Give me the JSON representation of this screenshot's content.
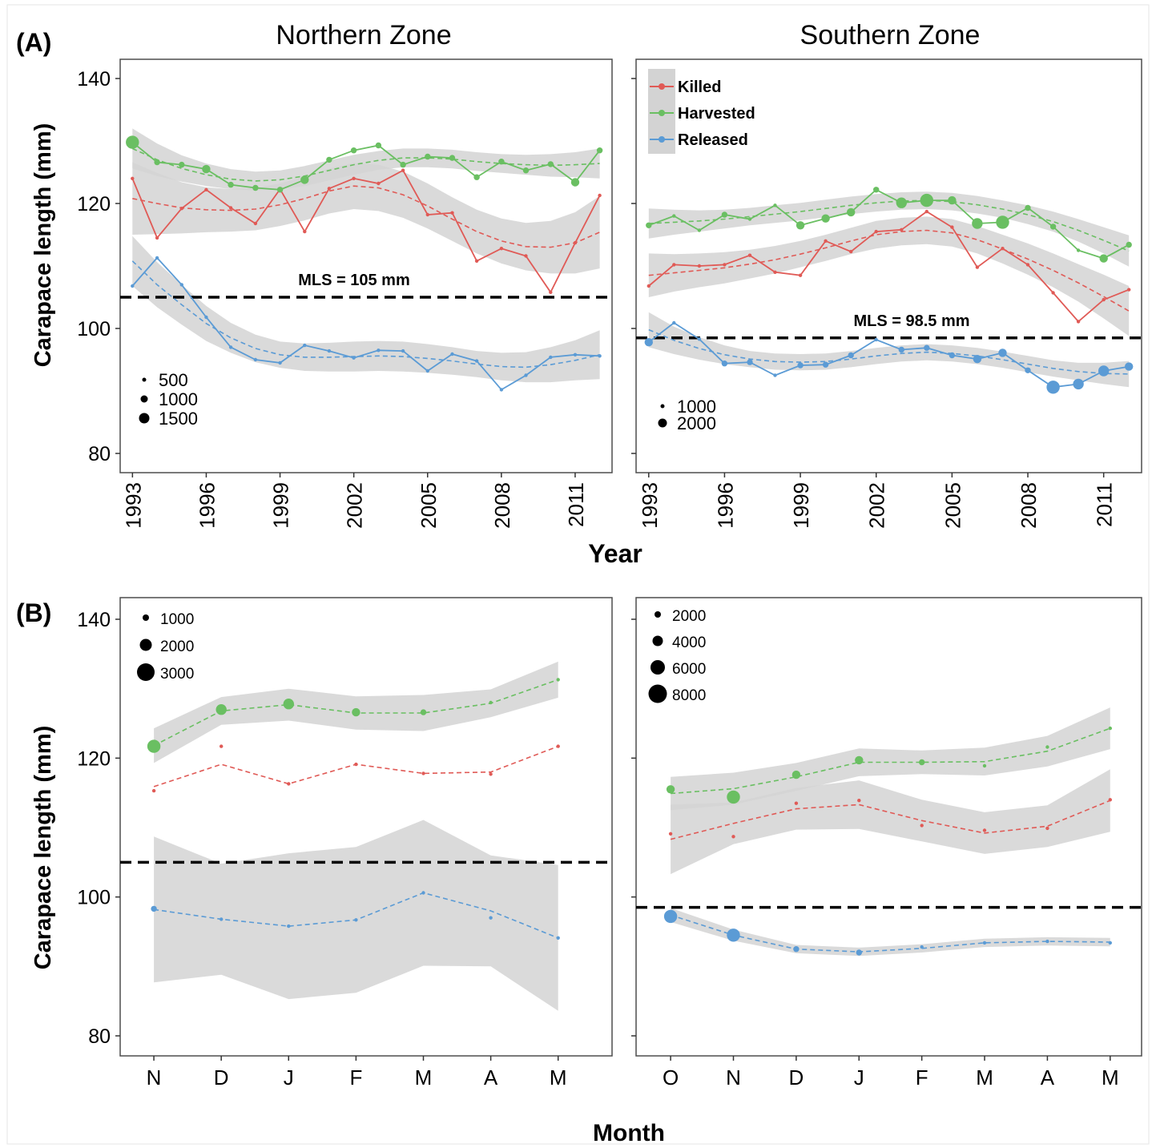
{
  "figure": {
    "panel_a_label": "(A)",
    "panel_b_label": "(B)",
    "a_xlabel": "Year",
    "b_xlabel": "Month",
    "ylabel": "Carapace length (mm)",
    "legend": {
      "killed": "Killed",
      "harvested": "Harvested",
      "released": "Released"
    },
    "colors": {
      "killed": "#e05a56",
      "harvested": "#6abf62",
      "released": "#5b9bd5",
      "band": "#d3d3d3"
    }
  },
  "chart_data": [
    {
      "id": "A-north",
      "type": "line",
      "title": "Northern Zone",
      "xlabel": "Year",
      "ylabel": "Carapace length (mm)",
      "ylim": [
        77,
        143
      ],
      "xlim": [
        1992.5,
        2012.5
      ],
      "yticks": [
        80,
        100,
        120,
        140
      ],
      "xticks": [
        "1993",
        "1996",
        "1999",
        "2002",
        "2005",
        "2008",
        "2011"
      ],
      "mls_label": "MLS = 105 mm",
      "mls_value": 105,
      "size_legend": [
        "500",
        "1000",
        "1500"
      ],
      "x": [
        1993,
        1994,
        1995,
        1996,
        1997,
        1998,
        1999,
        2000,
        2001,
        2002,
        2003,
        2004,
        2005,
        2006,
        2007,
        2008,
        2009,
        2010,
        2011,
        2012
      ],
      "series": [
        {
          "key": "killed",
          "values": [
            124,
            114.5,
            119.2,
            122.2,
            119.3,
            116.8,
            122.3,
            115.5,
            122.4,
            124,
            123.2,
            125.3,
            118.2,
            118.5,
            110.8,
            112.8,
            111.6,
            105.8,
            113.7,
            121.3
          ],
          "sizes": [
            1,
            1,
            1,
            1,
            1,
            1,
            1,
            1,
            1,
            1,
            1,
            1,
            1,
            1,
            1,
            1,
            1,
            1,
            1,
            1
          ],
          "trend": [
            120.8,
            120,
            119.3,
            119,
            118.9,
            119.1,
            119.8,
            120.8,
            122,
            122.8,
            122.5,
            121.4,
            119.6,
            117.5,
            115.5,
            114,
            113.1,
            113,
            113.7,
            115.4
          ],
          "band": [
            5.8,
            4.9,
            4.1,
            3.6,
            3.4,
            3.4,
            3.4,
            3.5,
            3.6,
            3.7,
            3.7,
            3.7,
            3.6,
            3.5,
            3.5,
            3.6,
            3.8,
            4.2,
            4.9,
            5.8
          ]
        },
        {
          "key": "harvested",
          "values": [
            129.8,
            126.6,
            126.2,
            125.5,
            123,
            122.5,
            122.2,
            123.8,
            127,
            128.5,
            129.3,
            126.2,
            127.5,
            127.3,
            124.2,
            126.7,
            125.3,
            126.3,
            123.4,
            128.5
          ],
          "sizes": [
            3,
            1.5,
            1.5,
            2,
            1.5,
            1.5,
            1.5,
            2,
            1.5,
            1.5,
            1.5,
            1.5,
            1.5,
            1.5,
            1.5,
            1.5,
            1.5,
            1.5,
            2,
            1.5
          ],
          "trend": [
            128.8,
            127,
            125.6,
            124.6,
            123.9,
            123.6,
            123.8,
            124.4,
            125.3,
            126.2,
            126.9,
            127.3,
            127.3,
            127.1,
            126.7,
            126.4,
            126.2,
            126.1,
            126.2,
            126.4
          ],
          "band": [
            3.2,
            2.6,
            2.1,
            1.8,
            1.6,
            1.5,
            1.5,
            1.6,
            1.6,
            1.6,
            1.5,
            1.5,
            1.5,
            1.5,
            1.5,
            1.5,
            1.6,
            1.8,
            2,
            2.4
          ]
        },
        {
          "key": "released",
          "values": [
            106.8,
            111.3,
            107,
            101.8,
            97,
            95,
            94.5,
            97.3,
            96.4,
            95.3,
            96.5,
            96.4,
            93.2,
            95.9,
            94.8,
            90.2,
            92.5,
            95.4,
            95.8,
            95.6
          ],
          "sizes": [
            1,
            1,
            1,
            1,
            1,
            1,
            1,
            1,
            1,
            1,
            1,
            1,
            1,
            1,
            1,
            1,
            1,
            1,
            1,
            1
          ],
          "trend": [
            110.8,
            107,
            103.8,
            100.8,
            98.5,
            96.8,
            95.8,
            95.4,
            95.4,
            95.5,
            95.6,
            95.5,
            95.2,
            94.8,
            94.3,
            93.9,
            93.8,
            94.2,
            94.9,
            95.8
          ],
          "band": [
            4,
            3.6,
            3.2,
            2.8,
            2.4,
            2.2,
            2.1,
            2.2,
            2.3,
            2.4,
            2.4,
            2.4,
            2.3,
            2.2,
            2.1,
            2.2,
            2.4,
            2.8,
            3.2,
            3.9
          ]
        }
      ]
    },
    {
      "id": "A-south",
      "type": "line",
      "title": "Southern Zone",
      "xlabel": "Year",
      "ylabel": "Carapace length (mm)",
      "ylim": [
        77,
        143
      ],
      "xlim": [
        1992.5,
        2012.5
      ],
      "yticks": [
        80,
        100,
        120,
        140
      ],
      "xticks": [
        "1993",
        "1996",
        "1999",
        "2002",
        "2005",
        "2008",
        "2011"
      ],
      "mls_label": "MLS = 98.5 mm",
      "mls_value": 98.5,
      "size_legend": [
        "1000",
        "2000"
      ],
      "x": [
        1993,
        1994,
        1995,
        1996,
        1997,
        1998,
        1999,
        2000,
        2001,
        2002,
        2003,
        2004,
        2005,
        2006,
        2007,
        2008,
        2009,
        2010,
        2011,
        2012
      ],
      "series": [
        {
          "key": "killed",
          "values": [
            106.8,
            110.2,
            110,
            110.2,
            111.7,
            109,
            108.5,
            114,
            112.3,
            115.5,
            115.8,
            118.7,
            116.2,
            109.8,
            112.8,
            110.2,
            105.7,
            101.1,
            104.6,
            106.2
          ],
          "sizes": [
            1,
            1,
            1,
            1,
            1,
            1,
            1,
            1,
            1,
            1,
            1,
            1,
            1,
            1,
            1,
            1,
            1,
            1,
            1,
            1
          ],
          "trend": [
            108.5,
            108.9,
            109.3,
            109.7,
            110.3,
            111,
            111.9,
            112.9,
            114,
            115,
            115.5,
            115.7,
            115.3,
            114.2,
            112.7,
            111.1,
            109.3,
            107.3,
            105.1,
            102.8
          ],
          "band": [
            3.5,
            3,
            2.7,
            2.5,
            2.3,
            2.2,
            2.1,
            2.1,
            2.1,
            2.2,
            2.2,
            2.2,
            2.2,
            2.2,
            2.3,
            2.5,
            2.7,
            3,
            3.5,
            4
          ]
        },
        {
          "key": "harvested",
          "values": [
            116.5,
            118,
            115.7,
            118.2,
            117.5,
            119.7,
            116.5,
            117.6,
            118.6,
            122.2,
            120.1,
            120.5,
            120.5,
            116.8,
            117,
            119.3,
            116.3,
            112.5,
            111.2,
            113.4
          ],
          "sizes": [
            1.5,
            1,
            1,
            1.5,
            1,
            1,
            2,
            2,
            2,
            1.5,
            2.5,
            3,
            2,
            2.5,
            3,
            1.5,
            1.5,
            1,
            2,
            1.5
          ],
          "trend": [
            116.8,
            117,
            117.2,
            117.5,
            117.9,
            118.3,
            118.7,
            119.2,
            119.7,
            120.1,
            120.4,
            120.5,
            120.3,
            119.8,
            119.1,
            118.2,
            117.1,
            115.7,
            114.1,
            112.4
          ],
          "band": [
            2.4,
            2,
            1.7,
            1.5,
            1.4,
            1.4,
            1.4,
            1.4,
            1.4,
            1.4,
            1.4,
            1.4,
            1.4,
            1.4,
            1.4,
            1.5,
            1.6,
            1.8,
            2.1,
            2.5
          ]
        },
        {
          "key": "released",
          "values": [
            97.8,
            100.9,
            98.3,
            94.4,
            94.6,
            92.5,
            94.1,
            94.2,
            95.7,
            98.2,
            96.6,
            96.9,
            95.7,
            95.1,
            96.1,
            93.3,
            90.6,
            91.1,
            93.2,
            93.9
          ],
          "sizes": [
            2,
            1,
            1,
            1.5,
            1.5,
            1,
            1.5,
            1.5,
            1.5,
            1,
            1.5,
            1.5,
            1.5,
            2,
            2,
            1.5,
            3,
            2.5,
            2.5,
            2
          ],
          "trend": [
            99.8,
            98.1,
            96.8,
            95.8,
            95.1,
            94.7,
            94.6,
            94.7,
            95.1,
            95.6,
            96,
            96.2,
            96,
            95.6,
            95,
            94.3,
            93.6,
            93.1,
            92.8,
            92.7
          ],
          "band": [
            2.8,
            2.2,
            1.8,
            1.5,
            1.3,
            1.3,
            1.3,
            1.3,
            1.3,
            1.3,
            1.3,
            1.3,
            1.3,
            1.3,
            1.3,
            1.3,
            1.3,
            1.4,
            1.7,
            2.1
          ]
        }
      ]
    },
    {
      "id": "B-north",
      "type": "line",
      "title": "",
      "xlabel": "Month",
      "ylabel": "Carapace length (mm)",
      "ylim": [
        77,
        143
      ],
      "xlim": [
        0.5,
        7.8
      ],
      "yticks": [
        80,
        100,
        120,
        140
      ],
      "xticks": [
        "N",
        "D",
        "J",
        "F",
        "M",
        "A",
        "M"
      ],
      "mls_value": 105,
      "size_legend": [
        "1000",
        "2000",
        "3000"
      ],
      "x": [
        1,
        2,
        3,
        4,
        5,
        6,
        7
      ],
      "series": [
        {
          "key": "killed",
          "values": [
            115.3,
            121.7,
            116.3,
            119.1,
            117.8,
            117.7,
            121.7
          ],
          "sizes": [
            1,
            1,
            1,
            1,
            1,
            1,
            1
          ],
          "trend": [
            115.9,
            119.1,
            116.3,
            119.1,
            117.8,
            118,
            121.7
          ],
          "band": null
        },
        {
          "key": "harvested",
          "values": [
            121.7,
            127,
            127.8,
            126.6,
            126.6,
            128,
            131.3
          ],
          "sizes": [
            3,
            2.5,
            2.5,
            2,
            1.5,
            1,
            1
          ],
          "trend": [
            121.8,
            126.8,
            127.7,
            126.5,
            126.5,
            127.9,
            131.3
          ],
          "band": [
            2.5,
            2,
            2.3,
            2.4,
            2.6,
            2,
            2.6
          ]
        },
        {
          "key": "released",
          "values": [
            98.3,
            96.8,
            95.8,
            96.7,
            100.6,
            97,
            94.1
          ],
          "sizes": [
            1.5,
            1,
            1,
            1,
            1,
            1,
            1
          ],
          "trend": [
            98.2,
            96.8,
            95.8,
            96.7,
            100.6,
            98,
            94.1
          ],
          "band": [
            10.5,
            8,
            10.5,
            10.5,
            10.5,
            8,
            10.5
          ]
        }
      ]
    },
    {
      "id": "B-south",
      "type": "line",
      "title": "",
      "xlabel": "Month",
      "ylabel": "Carapace length (mm)",
      "ylim": [
        77,
        143
      ],
      "xlim": [
        0.45,
        8.5
      ],
      "yticks": [
        80,
        100,
        120,
        140
      ],
      "xticks": [
        "O",
        "N",
        "D",
        "J",
        "F",
        "M",
        "A",
        "M"
      ],
      "mls_value": 98.5,
      "size_legend": [
        "2000",
        "4000",
        "6000",
        "8000"
      ],
      "x": [
        1,
        2,
        3,
        4,
        5,
        6,
        7,
        8
      ],
      "series": [
        {
          "key": "killed",
          "values": [
            109.1,
            108.7,
            113.5,
            113.9,
            110.3,
            109.6,
            109.9,
            114
          ],
          "sizes": [
            1,
            1,
            1,
            1,
            1,
            1,
            1,
            1
          ],
          "trend": [
            108.3,
            110.6,
            112.7,
            113.3,
            111,
            109.2,
            110.2,
            113.9
          ],
          "band": [
            5,
            3,
            3,
            3.5,
            3,
            3,
            3,
            4.5
          ]
        },
        {
          "key": "harvested",
          "values": [
            115.5,
            114.4,
            117.6,
            119.7,
            119.4,
            118.9,
            121.6,
            124.3
          ],
          "sizes": [
            2,
            3,
            2,
            2,
            1.5,
            1,
            1,
            1
          ],
          "trend": [
            114.9,
            115.6,
            117.3,
            119.4,
            119.4,
            119.5,
            121,
            124.3
          ],
          "band": [
            2.4,
            2.3,
            2,
            2,
            1.7,
            2,
            2.2,
            3
          ]
        },
        {
          "key": "released",
          "values": [
            97.2,
            94.5,
            92.5,
            92,
            92.8,
            93.4,
            93.6,
            93.4
          ],
          "sizes": [
            3,
            3,
            1.5,
            1.5,
            1,
            1,
            1,
            1
          ],
          "trend": [
            97.4,
            94.5,
            92.5,
            92.1,
            92.6,
            93.4,
            93.6,
            93.5
          ],
          "band": [
            1,
            0.8,
            0.6,
            0.6,
            0.6,
            0.6,
            0.6,
            0.6
          ]
        }
      ]
    }
  ]
}
